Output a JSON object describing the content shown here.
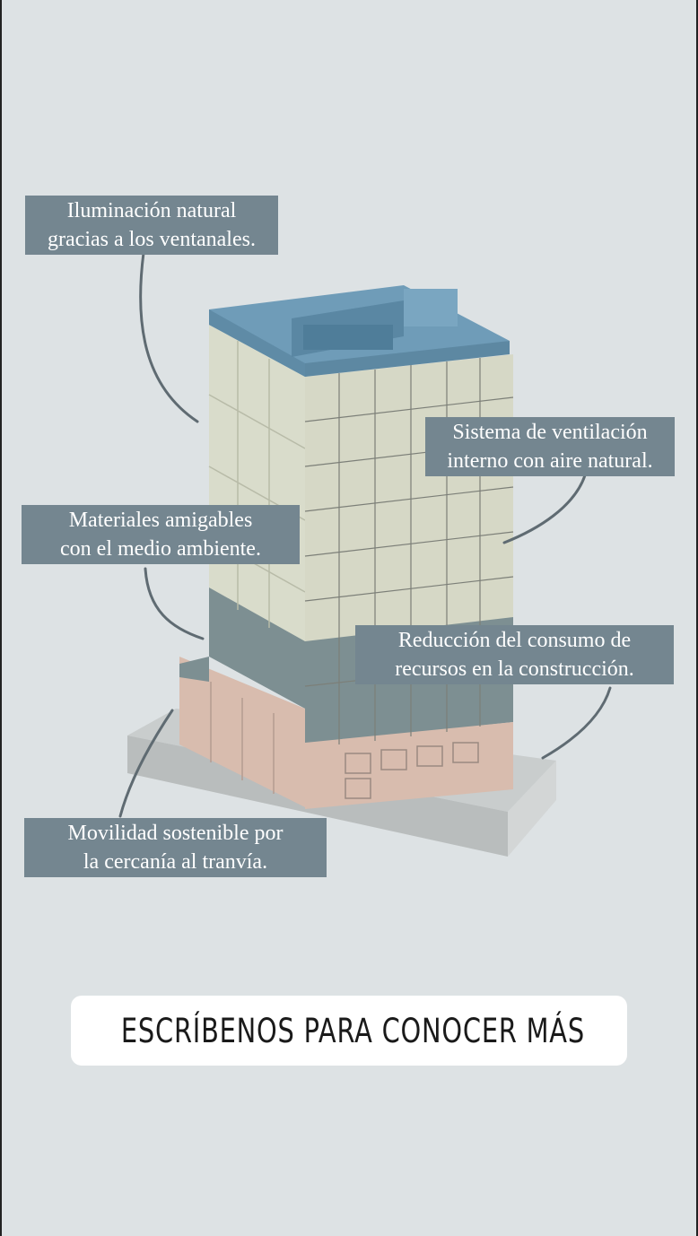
{
  "callouts": {
    "lighting": [
      "Iluminación natural",
      "gracias a los ventanales."
    ],
    "ventilation": [
      "Sistema de ventilación",
      "interno con aire natural."
    ],
    "materials": [
      "Materiales amigables",
      "con el medio ambiente."
    ],
    "resources": [
      "Reducción del consumo de",
      "recursos en la construcción."
    ],
    "mobility": [
      "Movilidad sostenible por",
      "la cercanía al tranvía."
    ]
  },
  "cta": {
    "icon": "link-icon",
    "label": "ESCRÍBENOS PARA CONOCER MÁS"
  },
  "colors": {
    "background": "#dde2e4",
    "callout": "#748690",
    "roof": "#6f9cb8",
    "upper_facade": "#d9dccb",
    "middle_facade": "#7d8f92",
    "base_facade": "#d8bcae",
    "plinth": "#c9cdcd"
  }
}
